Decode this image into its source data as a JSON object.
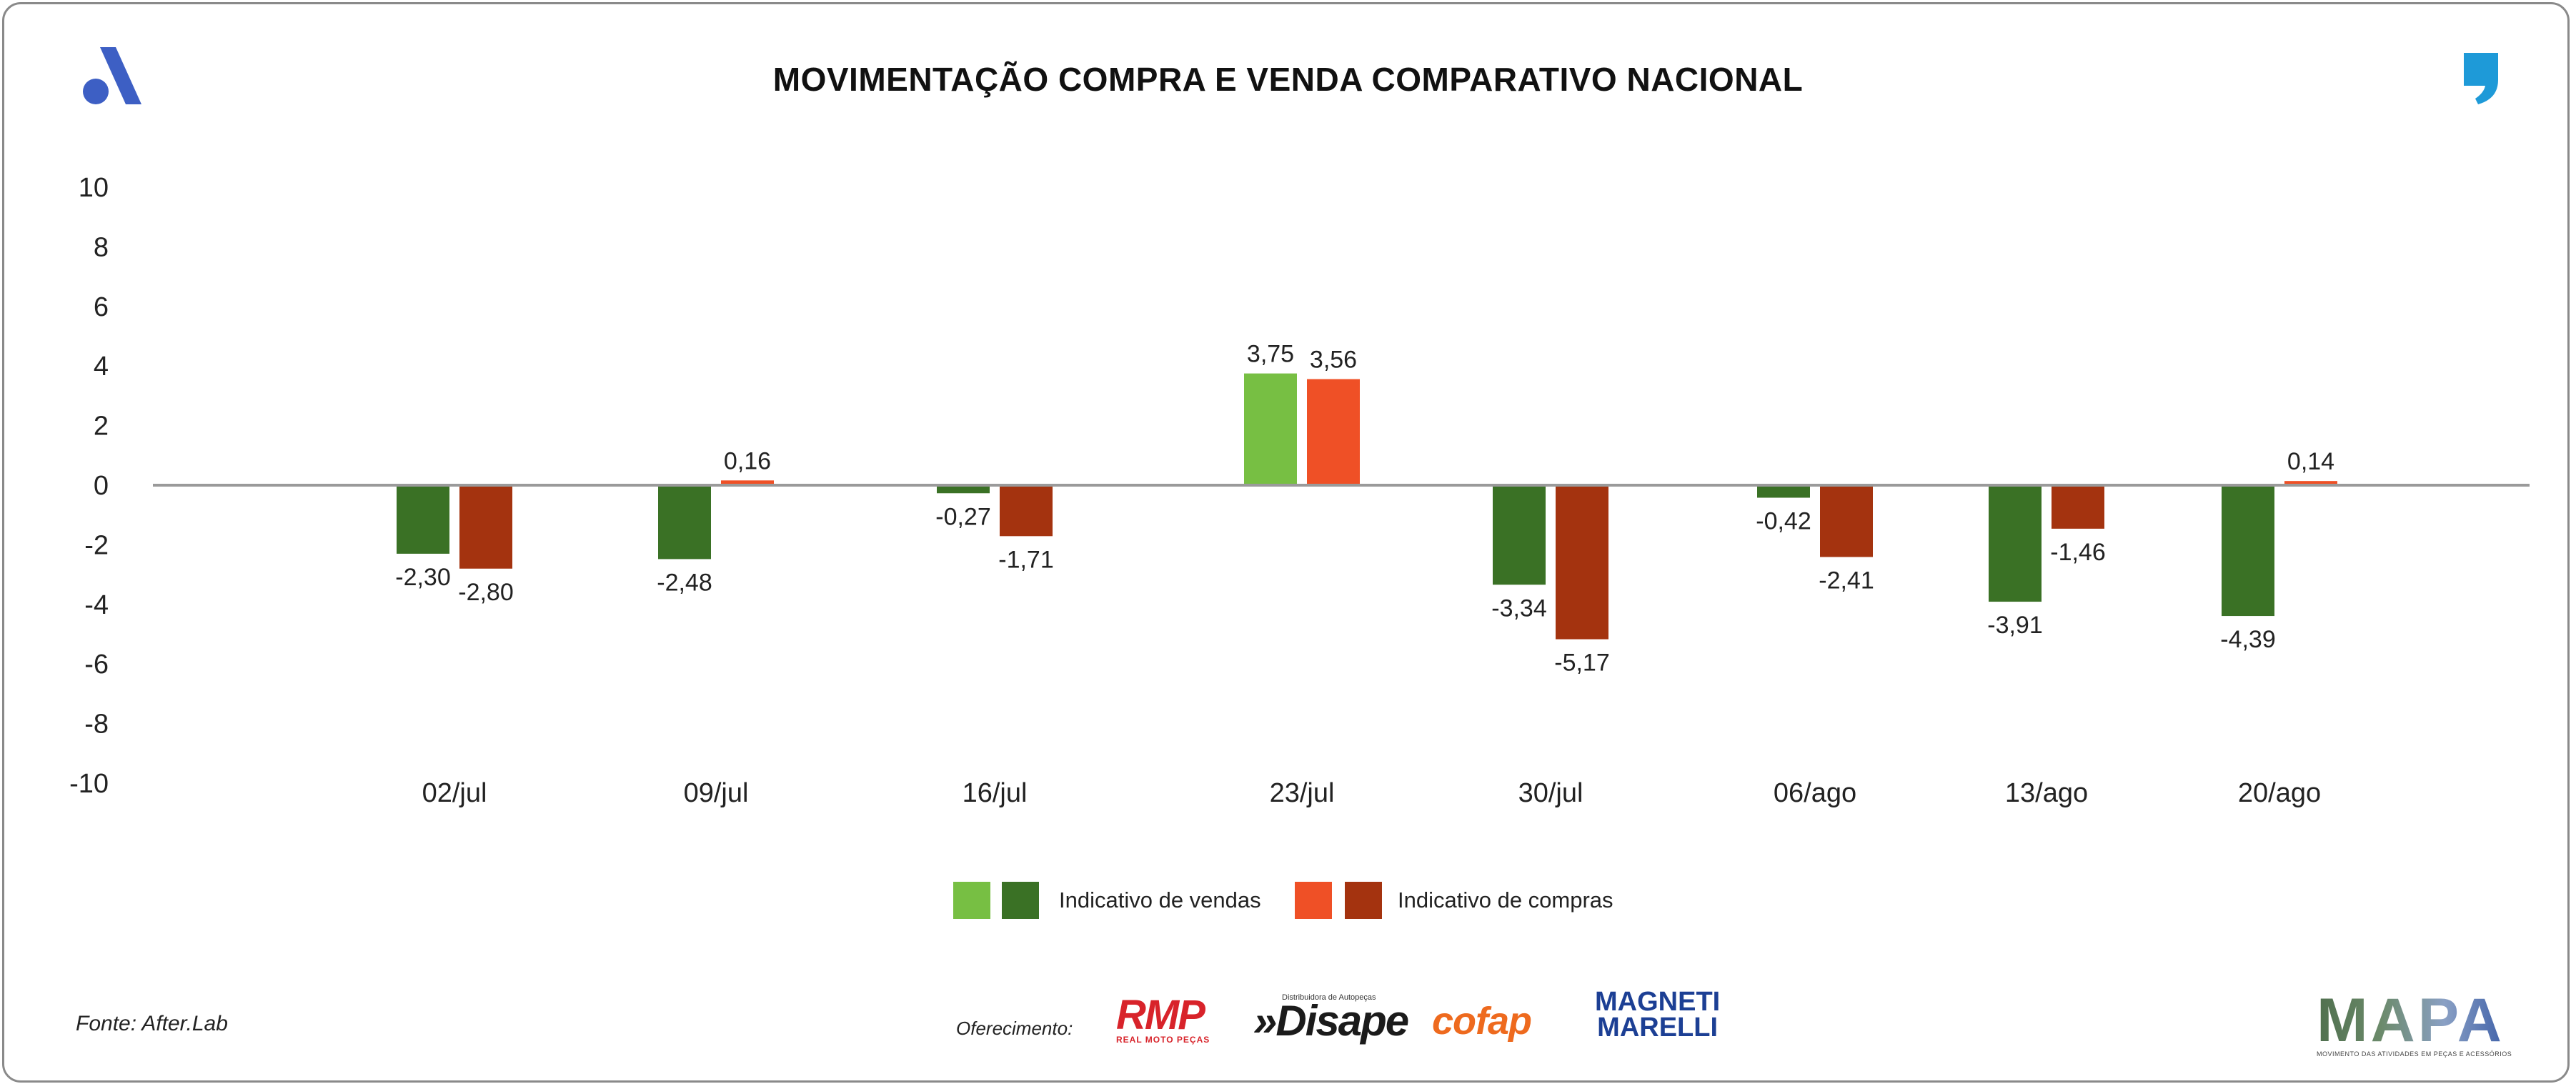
{
  "title": "MOVIMENTAÇÃO COMPRA E VENDA COMPARATIVO NACIONAL",
  "colors": {
    "vendas_light": "#77bf43",
    "vendas_dark": "#3a7125",
    "compras_light": "#ef5026",
    "compras_dark": "#a4330f",
    "zero_line": "#9a9a9a",
    "brand_blue": "#3d5fc4",
    "quote_blue": "#1e9ad8"
  },
  "chart_data": {
    "type": "bar",
    "title": "MOVIMENTAÇÃO COMPRA E VENDA COMPARATIVO NACIONAL",
    "xlabel": "",
    "ylabel": "",
    "ylim": [
      -10,
      10
    ],
    "yticks": [
      "10",
      "8",
      "6",
      "4",
      "2",
      "0",
      "-2",
      "-4",
      "-6",
      "-8",
      "-10"
    ],
    "ytick_values": [
      10,
      8,
      6,
      4,
      2,
      0,
      -2,
      -4,
      -6,
      -8,
      -10
    ],
    "categories": [
      "02/jul",
      "09/jul",
      "16/jul",
      "23/jul",
      "30/jul",
      "06/ago",
      "13/ago",
      "20/ago"
    ],
    "series": [
      {
        "name": "Indicativo de vendas",
        "values": [
          -2.3,
          -2.48,
          -0.27,
          3.75,
          -3.34,
          -0.42,
          -3.91,
          -4.39
        ],
        "labels": [
          "-2,30",
          "-2,48",
          "-0,27",
          "3,75",
          "-3,34",
          "-0,42",
          "-3,91",
          "-4,39"
        ]
      },
      {
        "name": "Indicativo de compras",
        "values": [
          -2.8,
          0.16,
          -1.71,
          3.56,
          -5.17,
          -2.41,
          -1.46,
          0.14
        ],
        "labels": [
          "-2,80",
          "0,16",
          "-1,71",
          "3,56",
          "-5,17",
          "-2,41",
          "-1,46",
          "0,14"
        ]
      }
    ],
    "legend_position": "bottom"
  },
  "legend": {
    "vendas_label": "Indicativo de vendas",
    "compras_label": "Indicativo de compras"
  },
  "footer": {
    "source": "Fonte: After.Lab",
    "offer_label": "Oferecimento:",
    "sponsors": {
      "rmp": "RMP",
      "rmp_sub": "REAL MOTO PEÇAS",
      "disape_tag": "Distribuidora de Autopeças",
      "disape": "»Disape",
      "cofap": "cofap",
      "magneti_1": "MAGNETI",
      "magneti_2": "MARELLI"
    },
    "mapa": "MAPA",
    "mapa_sub": "MOVIMENTO DAS ATIVIDADES EM PEÇAS E ACESSÓRIOS"
  }
}
